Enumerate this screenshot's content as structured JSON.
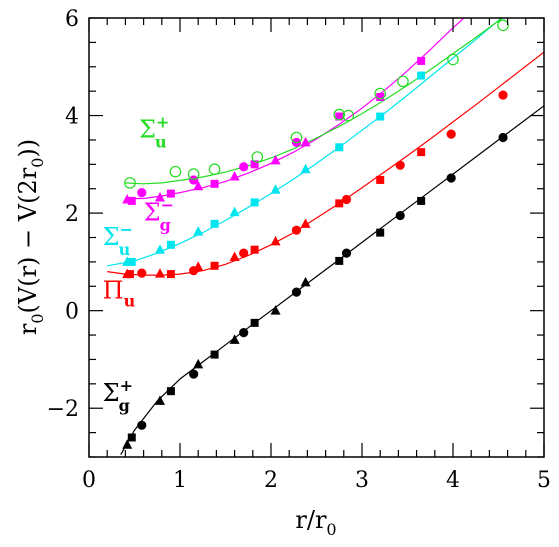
{
  "chart_data": {
    "type": "scatter",
    "xlabel": "r/r0",
    "ylabel": "r0(V(r) − V(2r0))",
    "xlim": [
      0,
      5
    ],
    "ylim": [
      -3,
      6
    ],
    "x_ticks": [
      0,
      1,
      2,
      3,
      4,
      5
    ],
    "y_ticks": [
      -2,
      0,
      2,
      4,
      6
    ],
    "x_tick_labels": [
      "0",
      "1",
      "2",
      "3",
      "4",
      "5"
    ],
    "y_tick_labels": [
      "−2",
      "0",
      "2",
      "4",
      "6"
    ],
    "grid": false,
    "series": [
      {
        "name": "Σg+",
        "color": "#000000",
        "curve": [
          [
            0.35,
            -2.95
          ],
          [
            0.5,
            -2.45
          ],
          [
            0.75,
            -1.85
          ],
          [
            1.0,
            -1.4
          ],
          [
            1.25,
            -1.05
          ],
          [
            1.5,
            -0.7
          ],
          [
            1.75,
            -0.35
          ],
          [
            2.0,
            0.0
          ],
          [
            2.25,
            0.35
          ],
          [
            2.5,
            0.7
          ],
          [
            2.75,
            1.05
          ],
          [
            3.0,
            1.4
          ],
          [
            3.25,
            1.75
          ],
          [
            3.5,
            2.1
          ],
          [
            3.75,
            2.45
          ],
          [
            4.0,
            2.8
          ],
          [
            4.25,
            3.15
          ],
          [
            4.5,
            3.5
          ],
          [
            4.75,
            3.85
          ],
          [
            5.0,
            4.2
          ]
        ],
        "points": [
          {
            "x": 0.42,
            "y": -2.75,
            "m": "triangle"
          },
          {
            "x": 0.47,
            "y": -2.6,
            "m": "square"
          },
          {
            "x": 0.58,
            "y": -2.35,
            "m": "circle"
          },
          {
            "x": 0.78,
            "y": -1.85,
            "m": "triangle"
          },
          {
            "x": 0.9,
            "y": -1.65,
            "m": "square"
          },
          {
            "x": 1.15,
            "y": -1.3,
            "m": "circle"
          },
          {
            "x": 1.2,
            "y": -1.1,
            "m": "triangle"
          },
          {
            "x": 1.38,
            "y": -0.9,
            "m": "square"
          },
          {
            "x": 1.6,
            "y": -0.6,
            "m": "triangle"
          },
          {
            "x": 1.7,
            "y": -0.45,
            "m": "circle"
          },
          {
            "x": 1.82,
            "y": -0.25,
            "m": "square"
          },
          {
            "x": 2.05,
            "y": 0.0,
            "m": "triangle"
          },
          {
            "x": 2.28,
            "y": 0.38,
            "m": "circle"
          },
          {
            "x": 2.38,
            "y": 0.58,
            "m": "triangle"
          },
          {
            "x": 2.75,
            "y": 1.02,
            "m": "square"
          },
          {
            "x": 2.83,
            "y": 1.18,
            "m": "circle"
          },
          {
            "x": 3.2,
            "y": 1.6,
            "m": "square"
          },
          {
            "x": 3.42,
            "y": 1.95,
            "m": "circle"
          },
          {
            "x": 3.65,
            "y": 2.25,
            "m": "square"
          },
          {
            "x": 3.98,
            "y": 2.72,
            "m": "circle"
          },
          {
            "x": 4.55,
            "y": 3.55,
            "m": "circle"
          }
        ]
      },
      {
        "name": "Πu",
        "color": "#ff0000",
        "curve": [
          [
            0.2,
            0.8
          ],
          [
            0.4,
            0.75
          ],
          [
            0.6,
            0.73
          ],
          [
            0.8,
            0.73
          ],
          [
            1.0,
            0.75
          ],
          [
            1.25,
            0.82
          ],
          [
            1.5,
            0.95
          ],
          [
            1.75,
            1.13
          ],
          [
            2.0,
            1.35
          ],
          [
            2.25,
            1.6
          ],
          [
            2.5,
            1.9
          ],
          [
            2.75,
            2.2
          ],
          [
            3.0,
            2.52
          ],
          [
            3.25,
            2.85
          ],
          [
            3.5,
            3.18
          ],
          [
            3.75,
            3.52
          ],
          [
            4.0,
            3.87
          ],
          [
            4.25,
            4.22
          ],
          [
            4.5,
            4.58
          ],
          [
            4.75,
            4.94
          ],
          [
            5.0,
            5.3
          ]
        ],
        "points": [
          {
            "x": 0.42,
            "y": 0.75,
            "m": "triangle"
          },
          {
            "x": 0.45,
            "y": 0.75,
            "m": "square"
          },
          {
            "x": 0.58,
            "y": 0.77,
            "m": "circle"
          },
          {
            "x": 0.78,
            "y": 0.76,
            "m": "triangle"
          },
          {
            "x": 0.9,
            "y": 0.75,
            "m": "square"
          },
          {
            "x": 1.15,
            "y": 0.82,
            "m": "circle"
          },
          {
            "x": 1.2,
            "y": 0.9,
            "m": "triangle"
          },
          {
            "x": 1.38,
            "y": 0.92,
            "m": "square"
          },
          {
            "x": 1.6,
            "y": 1.1,
            "m": "triangle"
          },
          {
            "x": 1.7,
            "y": 1.18,
            "m": "circle"
          },
          {
            "x": 1.82,
            "y": 1.25,
            "m": "square"
          },
          {
            "x": 2.05,
            "y": 1.42,
            "m": "triangle"
          },
          {
            "x": 2.28,
            "y": 1.65,
            "m": "circle"
          },
          {
            "x": 2.38,
            "y": 1.78,
            "m": "triangle"
          },
          {
            "x": 2.75,
            "y": 2.2,
            "m": "square"
          },
          {
            "x": 2.83,
            "y": 2.28,
            "m": "circle"
          },
          {
            "x": 3.2,
            "y": 2.68,
            "m": "square"
          },
          {
            "x": 3.42,
            "y": 2.98,
            "m": "circle"
          },
          {
            "x": 3.65,
            "y": 3.25,
            "m": "square"
          },
          {
            "x": 3.98,
            "y": 3.62,
            "m": "circle"
          },
          {
            "x": 4.55,
            "y": 4.42,
            "m": "circle"
          }
        ]
      },
      {
        "name": "Σu−",
        "color": "#00e5ee",
        "curve": [
          [
            0.2,
            0.92
          ],
          [
            0.5,
            1.02
          ],
          [
            0.75,
            1.18
          ],
          [
            1.0,
            1.38
          ],
          [
            1.25,
            1.6
          ],
          [
            1.5,
            1.85
          ],
          [
            1.75,
            2.12
          ],
          [
            2.0,
            2.4
          ],
          [
            2.25,
            2.7
          ],
          [
            2.5,
            3.02
          ],
          [
            2.75,
            3.35
          ],
          [
            3.0,
            3.7
          ],
          [
            3.25,
            4.05
          ],
          [
            3.5,
            4.42
          ],
          [
            3.75,
            4.8
          ],
          [
            4.0,
            5.18
          ],
          [
            4.25,
            5.56
          ],
          [
            4.5,
            5.95
          ],
          [
            4.55,
            6.03
          ]
        ],
        "points": [
          {
            "x": 0.42,
            "y": 1.0,
            "m": "triangle"
          },
          {
            "x": 0.47,
            "y": 1.0,
            "m": "square"
          },
          {
            "x": 0.78,
            "y": 1.25,
            "m": "triangle"
          },
          {
            "x": 0.9,
            "y": 1.35,
            "m": "square"
          },
          {
            "x": 1.2,
            "y": 1.62,
            "m": "triangle"
          },
          {
            "x": 1.38,
            "y": 1.78,
            "m": "square"
          },
          {
            "x": 1.6,
            "y": 2.02,
            "m": "triangle"
          },
          {
            "x": 1.82,
            "y": 2.22,
            "m": "square"
          },
          {
            "x": 2.05,
            "y": 2.48,
            "m": "triangle"
          },
          {
            "x": 2.38,
            "y": 2.9,
            "m": "triangle"
          },
          {
            "x": 2.75,
            "y": 3.35,
            "m": "square"
          },
          {
            "x": 3.2,
            "y": 3.98,
            "m": "square"
          },
          {
            "x": 3.65,
            "y": 4.82,
            "m": "square"
          }
        ]
      },
      {
        "name": "Σg−",
        "color": "#ff00ff",
        "curve": [
          [
            0.4,
            2.3
          ],
          [
            0.6,
            2.3
          ],
          [
            0.8,
            2.35
          ],
          [
            1.0,
            2.42
          ],
          [
            1.25,
            2.52
          ],
          [
            1.5,
            2.65
          ],
          [
            1.75,
            2.82
          ],
          [
            2.0,
            3.02
          ],
          [
            2.25,
            3.25
          ],
          [
            2.5,
            3.52
          ],
          [
            2.75,
            3.82
          ],
          [
            3.0,
            4.15
          ],
          [
            3.25,
            4.52
          ],
          [
            3.5,
            4.92
          ],
          [
            3.75,
            5.35
          ],
          [
            4.0,
            5.8
          ],
          [
            4.15,
            6.05
          ]
        ],
        "points": [
          {
            "x": 0.42,
            "y": 2.28,
            "m": "triangle"
          },
          {
            "x": 0.47,
            "y": 2.25,
            "m": "square"
          },
          {
            "x": 0.58,
            "y": 2.42,
            "m": "circle"
          },
          {
            "x": 0.78,
            "y": 2.32,
            "m": "triangle"
          },
          {
            "x": 0.9,
            "y": 2.4,
            "m": "square"
          },
          {
            "x": 1.15,
            "y": 2.68,
            "m": "circle"
          },
          {
            "x": 1.2,
            "y": 2.55,
            "m": "triangle"
          },
          {
            "x": 1.38,
            "y": 2.6,
            "m": "square"
          },
          {
            "x": 1.6,
            "y": 2.75,
            "m": "triangle"
          },
          {
            "x": 1.7,
            "y": 2.95,
            "m": "circle"
          },
          {
            "x": 1.82,
            "y": 3.0,
            "m": "square"
          },
          {
            "x": 2.05,
            "y": 3.08,
            "m": "triangle"
          },
          {
            "x": 2.28,
            "y": 3.45,
            "m": "circle"
          },
          {
            "x": 2.38,
            "y": 3.45,
            "m": "triangle"
          },
          {
            "x": 2.75,
            "y": 3.98,
            "m": "square"
          },
          {
            "x": 3.2,
            "y": 4.38,
            "m": "square"
          },
          {
            "x": 3.65,
            "y": 5.12,
            "m": "square"
          }
        ]
      },
      {
        "name": "Σu+",
        "color": "#22dd22",
        "curve": [
          [
            0.4,
            2.62
          ],
          [
            0.6,
            2.6
          ],
          [
            0.8,
            2.62
          ],
          [
            1.0,
            2.67
          ],
          [
            1.25,
            2.74
          ],
          [
            1.5,
            2.84
          ],
          [
            1.75,
            2.97
          ],
          [
            2.0,
            3.13
          ],
          [
            2.25,
            3.32
          ],
          [
            2.5,
            3.54
          ],
          [
            2.75,
            3.78
          ],
          [
            3.0,
            4.04
          ],
          [
            3.25,
            4.32
          ],
          [
            3.5,
            4.62
          ],
          [
            3.75,
            4.94
          ],
          [
            4.0,
            5.27
          ],
          [
            4.25,
            5.6
          ],
          [
            4.5,
            5.94
          ],
          [
            4.6,
            6.08
          ]
        ],
        "points": [
          {
            "x": 0.45,
            "y": 2.62
          },
          {
            "x": 0.95,
            "y": 2.85
          },
          {
            "x": 1.15,
            "y": 2.8
          },
          {
            "x": 1.38,
            "y": 2.9
          },
          {
            "x": 1.85,
            "y": 3.15
          },
          {
            "x": 2.28,
            "y": 3.55
          },
          {
            "x": 2.75,
            "y": 4.02
          },
          {
            "x": 2.85,
            "y": 4.0
          },
          {
            "x": 3.2,
            "y": 4.45
          },
          {
            "x": 3.45,
            "y": 4.7
          },
          {
            "x": 4.0,
            "y": 5.15
          },
          {
            "x": 4.55,
            "y": 5.85
          }
        ]
      }
    ],
    "annotations": [
      {
        "text": "Σ",
        "sup": "+",
        "sub": "u",
        "color": "#22dd22",
        "at": [
          0.55,
          3.55
        ]
      },
      {
        "text": "Σ",
        "sup": "−",
        "sub": "g",
        "color": "#ff00ff",
        "at": [
          0.6,
          1.85
        ]
      },
      {
        "text": "Σ",
        "sup": "−",
        "sub": "u",
        "color": "#00e5ee",
        "at": [
          0.15,
          1.35
        ]
      },
      {
        "text": "Π",
        "sup": "",
        "sub": "u",
        "color": "#ff0000",
        "at": [
          0.15,
          0.25
        ]
      },
      {
        "text": "Σ",
        "sup": "+",
        "sub": "g",
        "color": "#000000",
        "at": [
          0.15,
          -1.85
        ]
      }
    ]
  }
}
